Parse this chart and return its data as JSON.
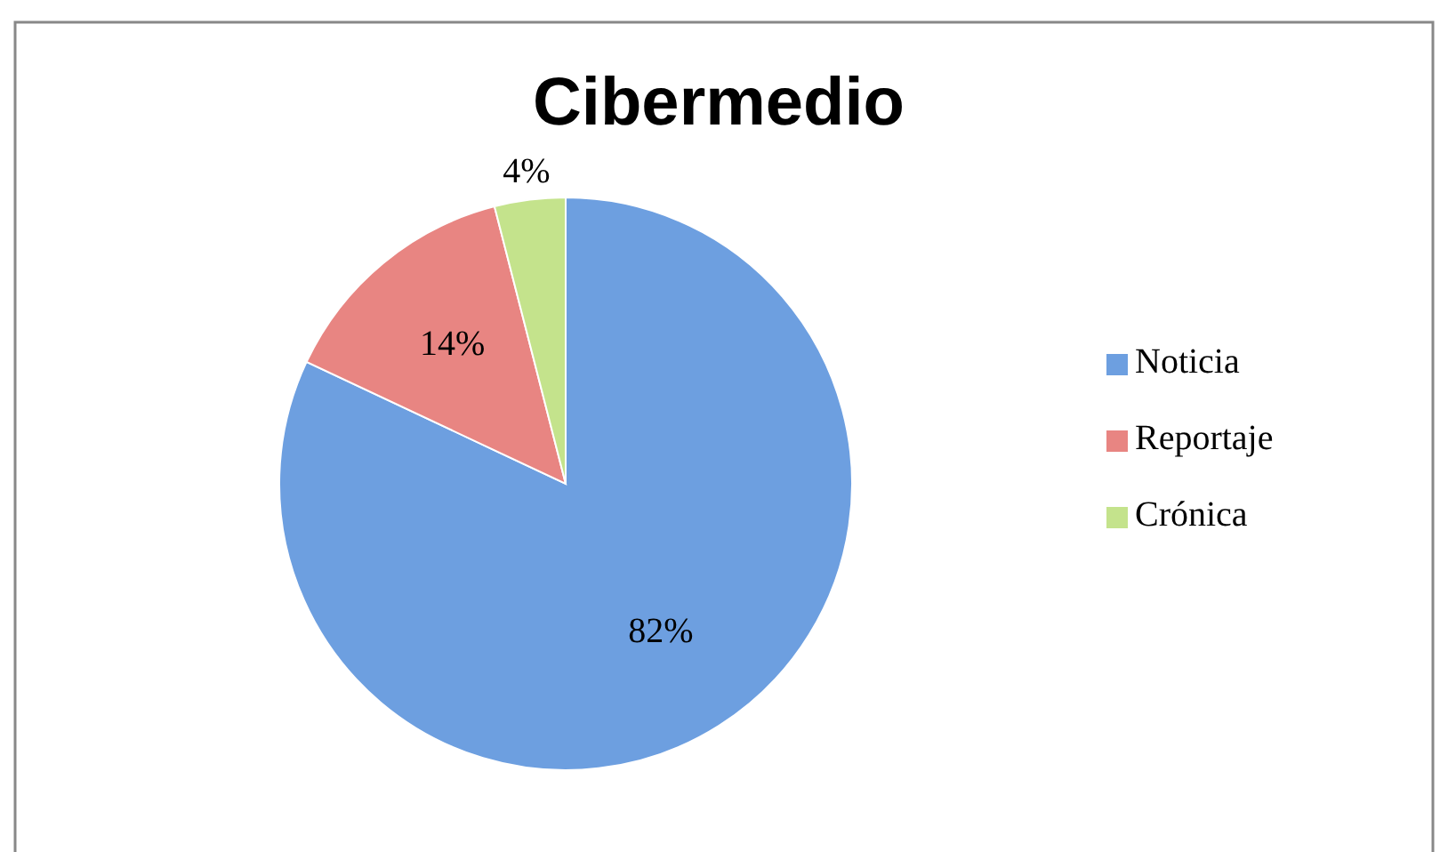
{
  "chart_data": {
    "type": "pie",
    "title": "Cibermedio",
    "categories": [
      "Noticia",
      "Reportaje",
      "Crónica"
    ],
    "values": [
      82,
      14,
      4
    ],
    "colors": [
      "#6d9fe0",
      "#e88582",
      "#c4e38c"
    ],
    "value_labels": [
      "82%",
      "14%",
      "4%"
    ],
    "legend": "right"
  }
}
